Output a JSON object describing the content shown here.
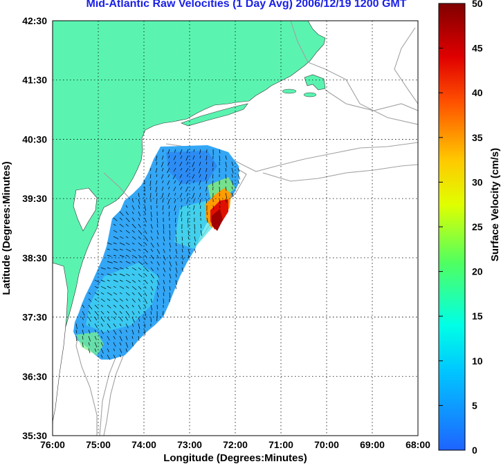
{
  "title": "Mid-Atlantic Raw Velocities (1 Day Avg) 2006/12/19 1200 GMT",
  "map": {
    "xlabel": "Longitude (Degrees:Minutes)",
    "ylabel": "Latitude (Degrees:Minutes)",
    "x_ticks": [
      "76:00",
      "75:00",
      "74:00",
      "73:00",
      "72:00",
      "71:00",
      "70:00",
      "69:00",
      "68:00"
    ],
    "y_ticks": [
      "42:30",
      "41:30",
      "40:30",
      "39:30",
      "38:30",
      "37:30",
      "36:30",
      "35:30"
    ],
    "lon_range": [
      -76,
      -68
    ],
    "lat_range": [
      35.5,
      42.5
    ],
    "land_color": "#5af4b0",
    "bathymetry_color": "#a0a0a0",
    "grid": "dotted"
  },
  "colorbar": {
    "label": "Surface Velocity (cm/s)",
    "ticks": [
      "0",
      "5",
      "10",
      "15",
      "20",
      "25",
      "30",
      "35",
      "40",
      "45",
      "50"
    ],
    "range": [
      0,
      50
    ]
  }
}
